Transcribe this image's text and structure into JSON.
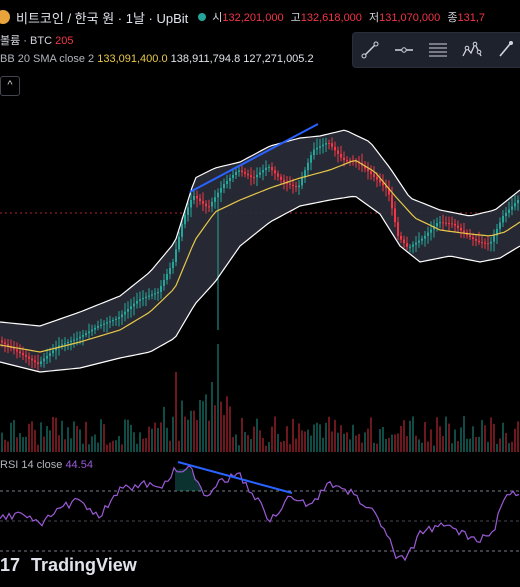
{
  "header": {
    "symbol_title": "비트코인 / 한국 원 · 1날 · UpBit",
    "open_label": "시",
    "open_value": "132,201,000",
    "high_label": "고",
    "high_value": "132,618,000",
    "low_label": "저",
    "low_value": "131,070,000",
    "close_label": "종",
    "close_value": "131,7"
  },
  "volume_legend": {
    "label": "볼륨 · BTC",
    "value": "205"
  },
  "bb_legend": {
    "label": "BB 20 SMA close 2",
    "basis": "133,091,400.0",
    "upper": "138,911,794.8",
    "lower": "127,271,005.2"
  },
  "collapse_glyph": "^",
  "toolbar": {
    "icons": [
      "trend-line-icon",
      "horizontal-ray-icon",
      "fib-retracement-icon",
      "pattern-icon",
      "brush-icon"
    ]
  },
  "rsi_legend": {
    "label": "RSI 14 close",
    "value": "44.54"
  },
  "branding": {
    "logo_text": "17",
    "name": "TradingView"
  },
  "colors": {
    "up": "#26a69a",
    "down": "#f23645",
    "bb_band": "#ffffff",
    "bb_basis": "#e8c84a",
    "bb_fill": "#2a2e39",
    "trendline": "#2962ff",
    "rsi_line": "#9c5ad8",
    "price_line": "#f23645"
  }
}
